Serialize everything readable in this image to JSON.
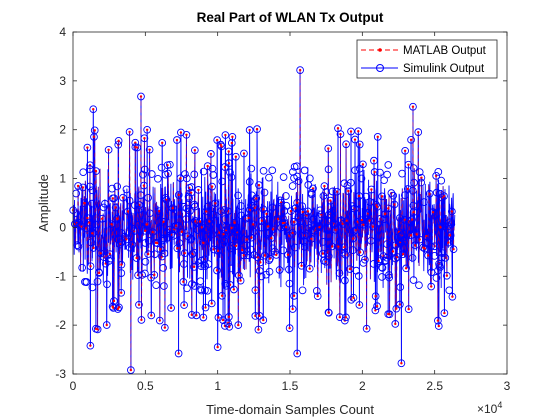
{
  "chart_data": {
    "type": "scatter",
    "title": "Real Part of WLAN Tx Output",
    "xlabel": "Time-domain Samples Count",
    "ylabel": "Amplitude",
    "x_multiplier": "×10",
    "x_exponent": "4",
    "xlim": [
      0,
      30000
    ],
    "ylim": [
      -3,
      4
    ],
    "x_ticks": [
      0,
      5000,
      10000,
      15000,
      20000,
      25000,
      30000
    ],
    "x_tick_labels": [
      "0",
      "0.5",
      "1",
      "1.5",
      "2",
      "2.5",
      "3"
    ],
    "y_ticks": [
      -3,
      -2,
      -1,
      0,
      1,
      2,
      3,
      4
    ],
    "y_tick_labels": [
      "-3",
      "-2",
      "-1",
      "0",
      "1",
      "2",
      "3",
      "4"
    ],
    "grid": false,
    "legend_location": "top-right",
    "sample_count": 26400,
    "series": [
      {
        "name": "MATLAB Output",
        "style": "dashed line with dot markers",
        "color": "#ff0000"
      },
      {
        "name": "Simulink Output",
        "style": "stem line with circle markers",
        "color": "#0000ff"
      }
    ],
    "notable_samples": [
      {
        "x": 15700,
        "y": 3.22
      },
      {
        "x": 1400,
        "y": 2.42
      },
      {
        "x": 4700,
        "y": 2.68
      },
      {
        "x": 23500,
        "y": 2.47
      },
      {
        "x": 4000,
        "y": -2.92
      },
      {
        "x": 22700,
        "y": -2.78
      },
      {
        "x": 15500,
        "y": -2.58
      },
      {
        "x": 7300,
        "y": -2.58
      },
      {
        "x": 10000,
        "y": -2.45
      },
      {
        "x": 1200,
        "y": -2.42
      }
    ]
  }
}
